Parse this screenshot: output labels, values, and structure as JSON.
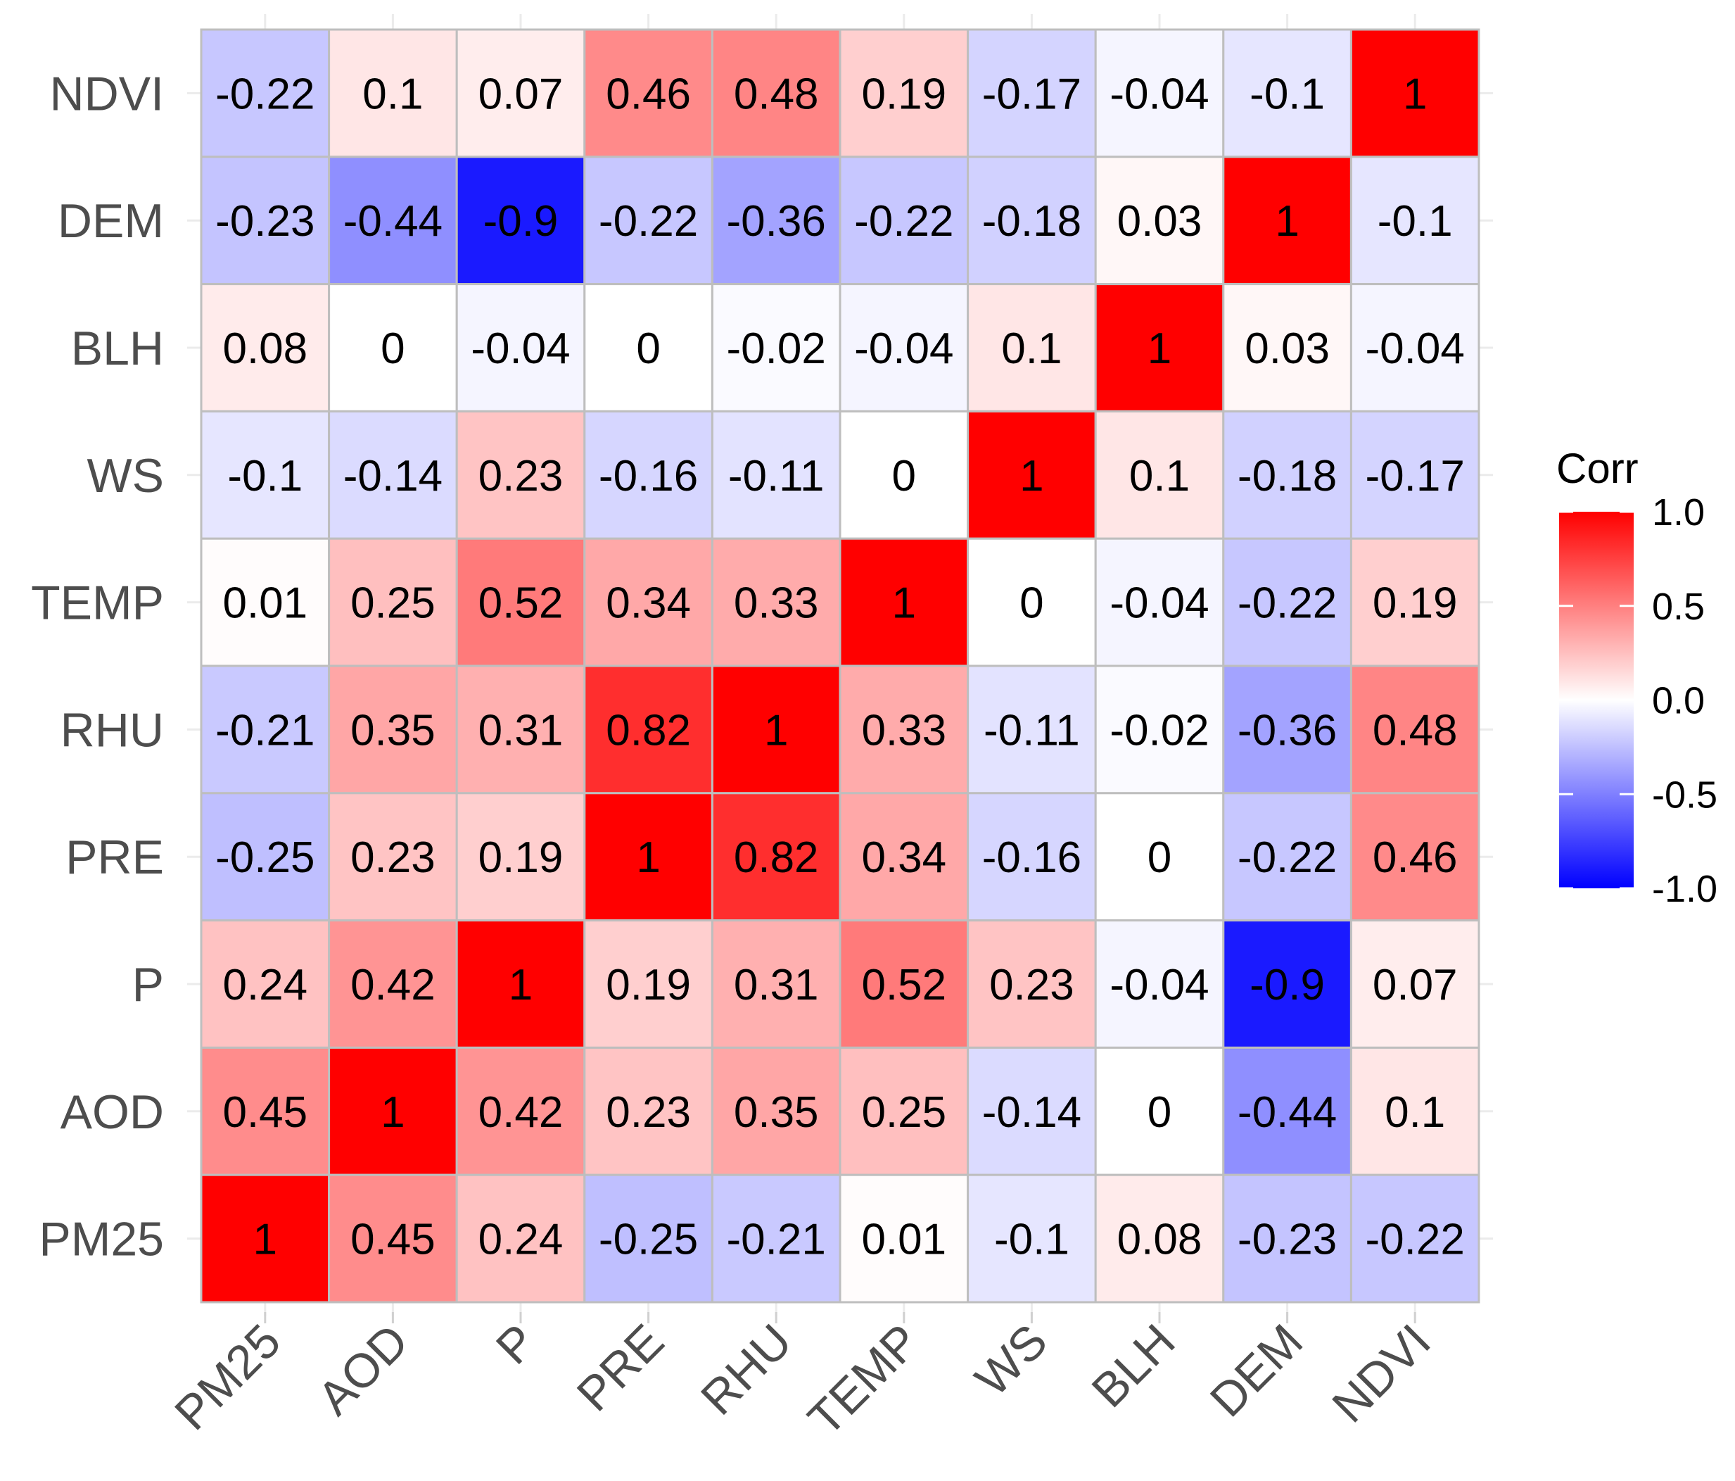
{
  "chart_data": {
    "type": "heatmap",
    "title": "",
    "xlabel": "",
    "ylabel": "",
    "variables": [
      "PM25",
      "AOD",
      "P",
      "PRE",
      "RHU",
      "TEMP",
      "WS",
      "BLH",
      "DEM",
      "NDVI"
    ],
    "matrix": [
      [
        1,
        0.45,
        0.24,
        -0.25,
        -0.21,
        0.01,
        -0.1,
        0.08,
        -0.23,
        -0.22
      ],
      [
        0.45,
        1,
        0.42,
        0.23,
        0.35,
        0.25,
        -0.14,
        0,
        -0.44,
        0.1
      ],
      [
        0.24,
        0.42,
        1,
        0.19,
        0.31,
        0.52,
        0.23,
        -0.04,
        -0.9,
        0.07
      ],
      [
        -0.25,
        0.23,
        0.19,
        1,
        0.82,
        0.34,
        -0.16,
        0,
        -0.22,
        0.46
      ],
      [
        -0.21,
        0.35,
        0.31,
        0.82,
        1,
        0.33,
        -0.11,
        -0.02,
        -0.36,
        0.48
      ],
      [
        0.01,
        0.25,
        0.52,
        0.34,
        0.33,
        1,
        0,
        -0.04,
        -0.22,
        0.19
      ],
      [
        -0.1,
        -0.14,
        0.23,
        -0.16,
        -0.11,
        0,
        1,
        0.1,
        -0.18,
        -0.17
      ],
      [
        0.08,
        0,
        -0.04,
        0,
        -0.02,
        -0.04,
        0.1,
        1,
        0.03,
        -0.04
      ],
      [
        -0.23,
        -0.44,
        -0.9,
        -0.22,
        -0.36,
        -0.22,
        -0.18,
        0.03,
        1,
        -0.1
      ],
      [
        -0.22,
        0.1,
        0.07,
        0.46,
        0.48,
        0.19,
        -0.17,
        -0.04,
        -0.1,
        1
      ]
    ],
    "row_order_top_to_bottom": [
      "NDVI",
      "DEM",
      "BLH",
      "WS",
      "TEMP",
      "RHU",
      "PRE",
      "P",
      "AOD",
      "PM25"
    ],
    "column_order_left_to_right": [
      "PM25",
      "AOD",
      "P",
      "PRE",
      "RHU",
      "TEMP",
      "WS",
      "BLH",
      "DEM",
      "NDVI"
    ],
    "value_range": [
      -1,
      1
    ],
    "colors": {
      "low": "#0000FF",
      "mid": "#FFFFFF",
      "high": "#FF0000",
      "grid": "#EBEBEB",
      "cell_border": "#BEBEBE"
    },
    "legend": {
      "title": "Corr",
      "ticks": [
        "1.0",
        "0.5",
        "0.0",
        "-0.5",
        "-1.0"
      ],
      "tick_values": [
        1,
        0.5,
        0,
        -0.5,
        -1
      ],
      "position": "right"
    },
    "grid": true
  }
}
